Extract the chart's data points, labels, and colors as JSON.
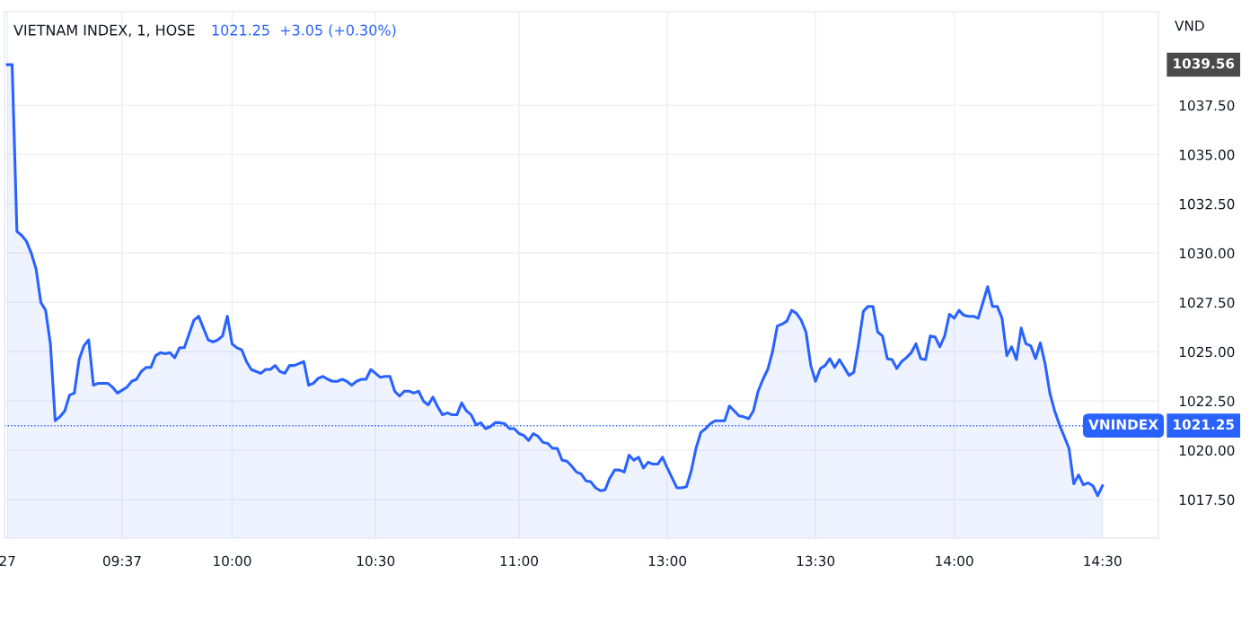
{
  "chart_data": {
    "type": "area",
    "title": "VIETNAM INDEX, 1, HOSE",
    "subtitle": "1021.25  +3.05 (+0.30%)",
    "ylabel": "VND",
    "categories": [
      "27",
      null,
      null,
      null,
      null,
      null,
      null,
      null,
      null,
      null,
      null,
      null,
      null,
      null,
      null,
      null,
      null,
      null,
      null,
      null,
      null,
      null,
      null,
      null,
      "09:37",
      null,
      null,
      null,
      null,
      null,
      null,
      null,
      null,
      null,
      null,
      null,
      null,
      null,
      null,
      null,
      null,
      null,
      null,
      null,
      null,
      null,
      null,
      "10:00",
      null,
      null,
      null,
      null,
      null,
      null,
      null,
      null,
      null,
      null,
      null,
      null,
      null,
      null,
      null,
      null,
      null,
      null,
      null,
      null,
      null,
      null,
      null,
      null,
      null,
      null,
      null,
      null,
      null,
      "10:30",
      null,
      null,
      null,
      null,
      null,
      null,
      null,
      null,
      null,
      null,
      null,
      null,
      null,
      null,
      null,
      null,
      null,
      null,
      null,
      null,
      null,
      null,
      null,
      null,
      null,
      null,
      null,
      null,
      null,
      "11:00",
      null,
      null,
      null,
      null,
      null,
      null,
      null,
      null,
      null,
      null,
      null,
      null,
      null,
      null,
      null,
      null,
      null,
      null,
      null,
      null,
      null,
      null,
      null,
      null,
      null,
      null,
      null,
      null,
      null,
      null,
      "13:00",
      null,
      null,
      null,
      null,
      null,
      null,
      null,
      null,
      null,
      null,
      null,
      null,
      null,
      null,
      null,
      null,
      null,
      null,
      null,
      null,
      null,
      null,
      null,
      null,
      null,
      null,
      null,
      null,
      null,
      null,
      "13:30",
      null,
      null,
      null,
      null,
      null,
      null,
      null,
      null,
      null,
      null,
      null,
      null,
      null,
      null,
      null,
      null,
      null,
      null,
      null,
      null,
      null,
      null,
      null,
      null,
      null,
      null,
      null,
      null,
      "14:00",
      null,
      null,
      null,
      null,
      null,
      null,
      null,
      null,
      null,
      null,
      null,
      null,
      null,
      null,
      null,
      null,
      null,
      null,
      null,
      null,
      null,
      null,
      null,
      null,
      null,
      null,
      null,
      null,
      null,
      null,
      "14:30",
      null
    ],
    "series": [
      {
        "color": "#2962ff",
        "values": [
          1039.56,
          1039.56,
          1031.1,
          1030.9,
          1030.6,
          1030.0,
          1029.2,
          1027.5,
          1027.1,
          1025.4,
          1021.5,
          1021.7,
          1022.0,
          1022.8,
          1022.9,
          1024.6,
          1025.3,
          1025.6,
          1023.3,
          1023.4,
          1023.4,
          1023.4,
          1023.2,
          1022.9,
          1023.05,
          1023.2,
          1023.5,
          1023.6,
          1024.0,
          1024.2,
          1024.2,
          1024.8,
          1024.95,
          1024.9,
          1024.95,
          1024.7,
          1025.2,
          1025.2,
          1025.9,
          1026.6,
          1026.8,
          1026.2,
          1025.6,
          1025.5,
          1025.6,
          1025.8,
          1026.8,
          1025.4,
          1025.2,
          1025.1,
          1024.5,
          1024.1,
          1024.0,
          1023.9,
          1024.1,
          1024.1,
          1024.3,
          1024.0,
          1023.9,
          1024.3,
          1024.3,
          1024.4,
          1024.5,
          1023.3,
          1023.4,
          1023.65,
          1023.75,
          1023.6,
          1023.5,
          1023.5,
          1023.6,
          1023.5,
          1023.3,
          1023.5,
          1023.6,
          1023.6,
          1024.1,
          1023.9,
          1023.7,
          1023.75,
          1023.75,
          1023.0,
          1022.75,
          1023.0,
          1023.0,
          1022.9,
          1023.0,
          1022.5,
          1022.3,
          1022.7,
          1022.2,
          1021.8,
          1021.9,
          1021.8,
          1021.8,
          1022.4,
          1022.0,
          1021.8,
          1021.3,
          1021.4,
          1021.1,
          1021.2,
          1021.4,
          1021.4,
          1021.35,
          1021.1,
          1021.1,
          1020.85,
          1020.75,
          1020.5,
          1020.85,
          1020.7,
          1020.4,
          1020.35,
          1020.1,
          1020.1,
          1019.5,
          1019.45,
          1019.2,
          1018.9,
          1018.8,
          1018.45,
          1018.4,
          1018.1,
          1017.95,
          1018.0,
          1018.6,
          1019.0,
          1019.0,
          1018.9,
          1019.75,
          1019.5,
          1019.65,
          1019.1,
          1019.4,
          1019.3,
          1019.3,
          1019.65,
          1019.1,
          1018.6,
          1018.1,
          1018.1,
          1018.15,
          1018.95,
          1020.1,
          1020.9,
          1021.1,
          1021.35,
          1021.5,
          1021.5,
          1021.5,
          1022.25,
          1022.0,
          1021.75,
          1021.7,
          1021.6,
          1022.0,
          1023.0,
          1023.6,
          1024.1,
          1025.0,
          1026.3,
          1026.4,
          1026.55,
          1027.1,
          1026.95,
          1026.6,
          1026.0,
          1024.3,
          1023.5,
          1024.15,
          1024.3,
          1024.65,
          1024.2,
          1024.6,
          1024.2,
          1023.8,
          1023.95,
          1025.4,
          1027.05,
          1027.3,
          1027.3,
          1026.0,
          1025.8,
          1024.65,
          1024.6,
          1024.15,
          1024.5,
          1024.7,
          1024.95,
          1025.4,
          1024.65,
          1024.6,
          1025.8,
          1025.75,
          1025.25,
          1025.8,
          1026.9,
          1026.7,
          1027.1,
          1026.85,
          1026.8,
          1026.8,
          1026.7,
          1027.5,
          1028.3,
          1027.3,
          1027.3,
          1026.7,
          1024.8,
          1025.25,
          1024.6,
          1026.2,
          1025.4,
          1025.3,
          1024.65,
          1025.45,
          1024.4,
          1022.9,
          1022.0,
          1021.3,
          1020.7,
          1020.1,
          1018.3,
          1018.75,
          1018.25,
          1018.35,
          1018.2,
          1017.7,
          1018.2,
          null
        ]
      }
    ],
    "ylim": [
      1015.55,
      1042.25
    ],
    "yticks": [
      {
        "value": 1017.5,
        "label": "1017.50"
      },
      {
        "value": 1020,
        "label": "1020.00"
      },
      {
        "value": 1022.5,
        "label": "1022.50"
      },
      {
        "value": 1025,
        "label": "1025.00"
      },
      {
        "value": 1027.5,
        "label": "1027.50"
      },
      {
        "value": 1030,
        "label": "1030.00"
      },
      {
        "value": 1032.5,
        "label": "1032.50"
      },
      {
        "value": 1035,
        "label": "1035.00"
      },
      {
        "value": 1037.5,
        "label": "1037.50"
      }
    ],
    "ref_lines": [
      {
        "axis": "y",
        "value": 1021.25,
        "label": "VNINDEX",
        "color": "#2962ff",
        "line_style": "dotted"
      }
    ],
    "annotations": [
      "1021.25",
      "1039.56"
    ],
    "grid": true,
    "legend": false
  }
}
